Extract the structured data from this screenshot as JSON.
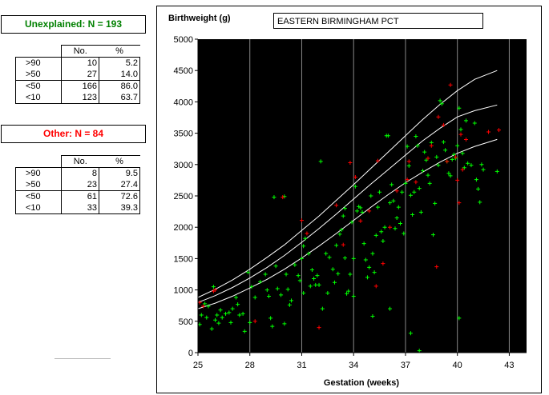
{
  "left_panel": {
    "unexplained": {
      "title": "Unexplained: N = 193",
      "title_color": "#008000",
      "headers": [
        "No.",
        "%"
      ],
      "rows": [
        {
          "label": ">90",
          "no": "10",
          "pct": "5.2"
        },
        {
          "label": ">50",
          "no": "27",
          "pct": "14.0"
        },
        {
          "label": "<50",
          "no": "166",
          "pct": "86.0"
        },
        {
          "label": "<10",
          "no": "123",
          "pct": "63.7"
        }
      ]
    },
    "other": {
      "title": "Other: N = 84",
      "title_color": "#ff0000",
      "headers": [
        "No.",
        "%"
      ],
      "rows": [
        {
          "label": ">90",
          "no": "8",
          "pct": "9.5"
        },
        {
          "label": ">50",
          "no": "23",
          "pct": "27.4"
        },
        {
          "label": "<50",
          "no": "61",
          "pct": "72.6"
        },
        {
          "label": "<10",
          "no": "33",
          "pct": "39.3"
        }
      ]
    }
  },
  "chart_data": {
    "type": "scatter",
    "title": "EASTERN BIRMINGHAM PCT",
    "ylabel": "Birthweight (g)",
    "xlabel": "Gestation (weeks)",
    "xlim": [
      25,
      44
    ],
    "ylim": [
      0,
      5000
    ],
    "x_ticks": [
      25,
      28,
      31,
      34,
      37,
      40,
      43
    ],
    "y_ticks": [
      0,
      500,
      1000,
      1500,
      2000,
      2500,
      3000,
      3500,
      4000,
      4500,
      5000
    ],
    "grid": "vertical",
    "plot_background": "#000000",
    "centile_lines_color": "#ffffff",
    "centile_lines": [
      {
        "x": [
          25,
          26,
          27,
          28,
          29,
          30,
          31,
          32,
          33,
          34,
          35,
          36,
          37,
          38,
          39,
          40,
          41,
          42.3
        ],
        "y": [
          880,
          1010,
          1160,
          1330,
          1520,
          1720,
          1950,
          2180,
          2430,
          2680,
          2940,
          3200,
          3460,
          3720,
          3960,
          4180,
          4360,
          4500
        ]
      },
      {
        "x": [
          25,
          26,
          27,
          28,
          29,
          30,
          31,
          32,
          33,
          34,
          35,
          36,
          37,
          38,
          39,
          40,
          41,
          42.3
        ],
        "y": [
          800,
          910,
          1040,
          1190,
          1360,
          1550,
          1760,
          1980,
          2210,
          2450,
          2690,
          2920,
          3150,
          3380,
          3580,
          3760,
          3860,
          3950
        ]
      },
      {
        "x": [
          25,
          26,
          27,
          28,
          29,
          30,
          31,
          32,
          33,
          34,
          35,
          36,
          37,
          38,
          39,
          40,
          41,
          42.3
        ],
        "y": [
          700,
          790,
          900,
          1030,
          1170,
          1330,
          1510,
          1700,
          1900,
          2110,
          2320,
          2520,
          2710,
          2880,
          3040,
          3180,
          3290,
          3400
        ]
      }
    ],
    "series": [
      {
        "color": "#00ff00",
        "points": [
          [
            25.1,
            450
          ],
          [
            25.2,
            600
          ],
          [
            25.4,
            780
          ],
          [
            25.5,
            560
          ],
          [
            25.6,
            740
          ],
          [
            25.8,
            380
          ],
          [
            25.9,
            1050
          ],
          [
            26,
            520
          ],
          [
            26.1,
            600
          ],
          [
            26.2,
            470
          ],
          [
            26.3,
            680
          ],
          [
            26.4,
            560
          ],
          [
            26.6,
            620
          ],
          [
            26.8,
            640
          ],
          [
            26.9,
            480
          ],
          [
            27,
            700
          ],
          [
            27.2,
            880
          ],
          [
            27.4,
            600
          ],
          [
            27.6,
            620
          ],
          [
            27.7,
            340
          ],
          [
            27.9,
            1280
          ],
          [
            28,
            480
          ],
          [
            28.1,
            1050
          ],
          [
            28.3,
            880
          ],
          [
            28.6,
            1130
          ],
          [
            28.9,
            1250
          ],
          [
            29,
            1000
          ],
          [
            29.1,
            900
          ],
          [
            29.2,
            550
          ],
          [
            29.3,
            420
          ],
          [
            29.4,
            2480
          ],
          [
            29.5,
            1380
          ],
          [
            29.6,
            1020
          ],
          [
            29.8,
            920
          ],
          [
            30,
            2490
          ],
          [
            30.1,
            1250
          ],
          [
            30.2,
            1010
          ],
          [
            30.3,
            760
          ],
          [
            30.4,
            830
          ],
          [
            30.6,
            1400
          ],
          [
            30.8,
            1230
          ],
          [
            30.9,
            1150
          ],
          [
            31,
            1500
          ],
          [
            31.1,
            1700
          ],
          [
            31.2,
            1820
          ],
          [
            31.4,
            1580
          ],
          [
            31.5,
            1060
          ],
          [
            31.6,
            1320
          ],
          [
            31.7,
            1180
          ],
          [
            31.8,
            1080
          ],
          [
            31.9,
            1230
          ],
          [
            32,
            1080
          ],
          [
            32.1,
            3050
          ],
          [
            32.2,
            700
          ],
          [
            32.4,
            1580
          ],
          [
            32.6,
            1520
          ],
          [
            32.8,
            1330
          ],
          [
            32.9,
            1120
          ],
          [
            33,
            1710
          ],
          [
            33.1,
            1260
          ],
          [
            33.2,
            1890
          ],
          [
            33.3,
            1960
          ],
          [
            33.4,
            2180
          ],
          [
            33.5,
            1510
          ],
          [
            33.6,
            940
          ],
          [
            33.7,
            980
          ],
          [
            33.8,
            1250
          ],
          [
            33.9,
            2080
          ],
          [
            34,
            1500
          ],
          [
            34.1,
            2650
          ],
          [
            34.2,
            2260
          ],
          [
            34.3,
            2330
          ],
          [
            34.4,
            2310
          ],
          [
            34.5,
            2240
          ],
          [
            34.6,
            1740
          ],
          [
            34.7,
            1480
          ],
          [
            34.8,
            1200
          ],
          [
            34.9,
            1360
          ],
          [
            35,
            2500
          ],
          [
            35.1,
            1580
          ],
          [
            35.2,
            1280
          ],
          [
            35.3,
            1870
          ],
          [
            35.4,
            2320
          ],
          [
            35.5,
            2560
          ],
          [
            35.6,
            1930
          ],
          [
            35.7,
            1780
          ],
          [
            35.8,
            2000
          ],
          [
            35.9,
            3460
          ],
          [
            36,
            3460
          ],
          [
            36.1,
            2390
          ],
          [
            36.2,
            2680
          ],
          [
            36.3,
            2420
          ],
          [
            36.4,
            1980
          ],
          [
            36.5,
            2150
          ],
          [
            36.6,
            2320
          ],
          [
            36.7,
            2060
          ],
          [
            36.8,
            2560
          ],
          [
            36.9,
            1900
          ],
          [
            37,
            2700
          ],
          [
            37.1,
            3290
          ],
          [
            37.2,
            2980
          ],
          [
            37.3,
            2510
          ],
          [
            37.4,
            2200
          ],
          [
            37.5,
            2560
          ],
          [
            37.6,
            3450
          ],
          [
            37.7,
            3300
          ],
          [
            37.8,
            2620
          ],
          [
            37.9,
            2240
          ],
          [
            38,
            2900
          ],
          [
            38.1,
            3200
          ],
          [
            38.2,
            3070
          ],
          [
            38.3,
            2830
          ],
          [
            38.4,
            2700
          ],
          [
            38.5,
            3350
          ],
          [
            38.6,
            1880
          ],
          [
            38.7,
            2380
          ],
          [
            38.8,
            3120
          ],
          [
            38.9,
            2990
          ],
          [
            39,
            4020
          ],
          [
            39.1,
            3970
          ],
          [
            39.2,
            3360
          ],
          [
            39.3,
            3230
          ],
          [
            39.4,
            3050
          ],
          [
            39.5,
            2860
          ],
          [
            39.6,
            2820
          ],
          [
            39.7,
            3080
          ],
          [
            39.8,
            3160
          ],
          [
            39.9,
            3100
          ],
          [
            40,
            3300
          ],
          [
            40.1,
            3900
          ],
          [
            40.2,
            3560
          ],
          [
            40.3,
            3180
          ],
          [
            40.4,
            2950
          ],
          [
            40.5,
            3700
          ],
          [
            40.6,
            3020
          ],
          [
            40.8,
            2990
          ],
          [
            41,
            3660
          ],
          [
            41.1,
            2760
          ],
          [
            41.2,
            2610
          ],
          [
            41.3,
            2400
          ],
          [
            41.4,
            3000
          ],
          [
            41.5,
            2920
          ],
          [
            42.3,
            2890
          ],
          [
            37.3,
            310
          ],
          [
            37.8,
            30
          ],
          [
            40.1,
            550
          ],
          [
            36.1,
            700
          ],
          [
            35.1,
            580
          ],
          [
            34,
            900
          ],
          [
            30,
            460
          ],
          [
            31.1,
            950
          ],
          [
            32.5,
            950
          ],
          [
            33.5,
            2300
          ],
          [
            27.3,
            770
          ]
        ]
      },
      {
        "color": "#ff0000",
        "points": [
          [
            25.1,
            800
          ],
          [
            25.3,
            740
          ],
          [
            25.9,
            980
          ],
          [
            26,
            1000
          ],
          [
            28.3,
            500
          ],
          [
            29.9,
            2480
          ],
          [
            31,
            2110
          ],
          [
            31.3,
            1900
          ],
          [
            32,
            400
          ],
          [
            33,
            2350
          ],
          [
            33.4,
            1720
          ],
          [
            34.1,
            2800
          ],
          [
            34.4,
            2100
          ],
          [
            34.9,
            2260
          ],
          [
            35.4,
            3060
          ],
          [
            35.7,
            1420
          ],
          [
            36.1,
            2000
          ],
          [
            36.5,
            2580
          ],
          [
            37.1,
            2760
          ],
          [
            37.2,
            3050
          ],
          [
            37.6,
            2720
          ],
          [
            38.3,
            3100
          ],
          [
            38.5,
            3300
          ],
          [
            38.8,
            1370
          ],
          [
            38.9,
            3760
          ],
          [
            39.2,
            3630
          ],
          [
            39.4,
            3050
          ],
          [
            39.6,
            4270
          ],
          [
            40,
            2750
          ],
          [
            40.1,
            2390
          ],
          [
            40.3,
            2920
          ],
          [
            40.5,
            3400
          ],
          [
            41.8,
            3520
          ],
          [
            42.4,
            3550
          ],
          [
            40.2,
            3480
          ],
          [
            39.9,
            3120
          ],
          [
            35.3,
            1060
          ],
          [
            33.8,
            3030
          ]
        ]
      }
    ]
  }
}
